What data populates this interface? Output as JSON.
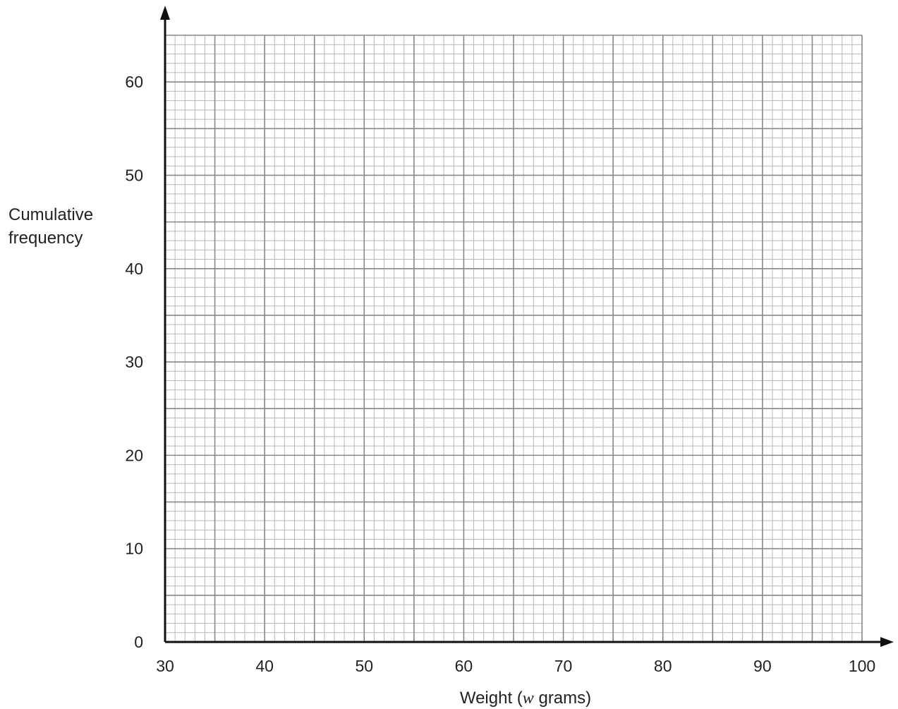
{
  "chart_data": {
    "type": "scatter",
    "title": "",
    "xlabel_parts": [
      "Weight (",
      "w",
      " grams)"
    ],
    "ylabel_lines": [
      "Cumulative",
      "frequency"
    ],
    "xlim": [
      30,
      100
    ],
    "ylim": [
      0,
      65
    ],
    "x_ticks": [
      30,
      40,
      50,
      60,
      70,
      80,
      90,
      100
    ],
    "y_ticks": [
      0,
      10,
      20,
      30,
      40,
      50,
      60
    ],
    "x_tick_labels": [
      "30",
      "40",
      "50",
      "60",
      "70",
      "80",
      "90",
      "100"
    ],
    "y_tick_labels": [
      "0",
      "10",
      "20",
      "30",
      "40",
      "50",
      "60"
    ],
    "grid": {
      "on": true,
      "x_minor_step": 1,
      "x_major_step": 5,
      "y_minor_step": 1,
      "y_major_step": 5
    },
    "series": [],
    "colors": {
      "grid_minor": "#b8b8b8",
      "grid_major": "#888888",
      "axis": "#111111",
      "text": "#222222"
    }
  }
}
